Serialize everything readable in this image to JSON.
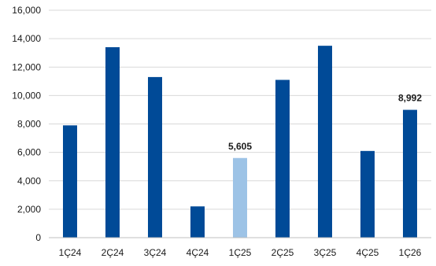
{
  "chart_data": {
    "type": "bar",
    "title": "",
    "xlabel": "",
    "ylabel": "",
    "categories": [
      "1Ç24",
      "2Ç24",
      "3Ç24",
      "4Ç24",
      "1Ç25",
      "2Ç25",
      "3Ç25",
      "4Ç25",
      "1Ç26"
    ],
    "values": [
      7900,
      13400,
      11300,
      2200,
      5605,
      11100,
      13500,
      6100,
      8992
    ],
    "bar_colors": [
      "#004a97",
      "#004a97",
      "#004a97",
      "#004a97",
      "#9dc3e6",
      "#004a97",
      "#004a97",
      "#004a97",
      "#004a97"
    ],
    "data_labels": [
      {
        "index": 4,
        "text": "5,605"
      },
      {
        "index": 8,
        "text": "8,992"
      }
    ],
    "ylim": [
      0,
      16000
    ],
    "y_ticks": [
      0,
      2000,
      4000,
      6000,
      8000,
      10000,
      12000,
      14000,
      16000
    ],
    "y_tick_labels": [
      "0",
      "2,000",
      "4,000",
      "6,000",
      "8,000",
      "10,000",
      "12,000",
      "14,000",
      "16,000"
    ],
    "grid": true,
    "legend": "none"
  }
}
